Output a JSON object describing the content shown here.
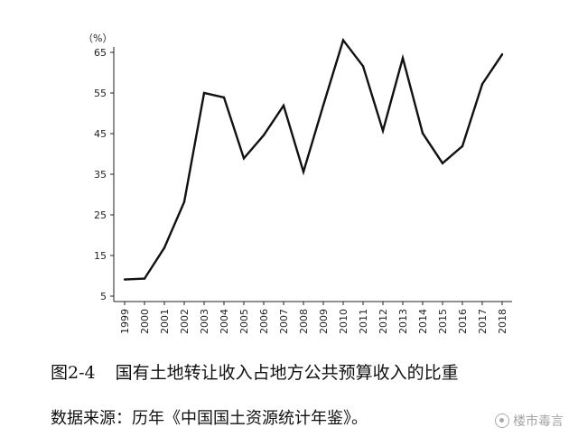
{
  "chart_data": {
    "type": "line",
    "unit_label": "（%）",
    "x": [
      "1999",
      "2000",
      "2001",
      "2002",
      "2003",
      "2004",
      "2005",
      "2006",
      "2007",
      "2008",
      "2009",
      "2010",
      "2011",
      "2012",
      "2013",
      "2014",
      "2015",
      "2016",
      "2017",
      "2018"
    ],
    "values": [
      9.1,
      9.3,
      16.9,
      28.2,
      55.0,
      53.9,
      38.9,
      44.6,
      51.9,
      35.6,
      52.0,
      68.0,
      61.6,
      45.7,
      63.6,
      45.1,
      37.7,
      41.9,
      57.2,
      64.5
    ],
    "yticks": [
      5,
      15,
      25,
      35,
      45,
      55,
      65
    ],
    "ylim": [
      5,
      70
    ],
    "grid": false,
    "line_color": "#111111"
  },
  "caption": {
    "number": "图2-4",
    "title": "国有土地转让收入占地方公共预算收入的比重"
  },
  "source": "数据来源：历年《中国国土资源统计年鉴》。",
  "watermark": "楼市毒言"
}
